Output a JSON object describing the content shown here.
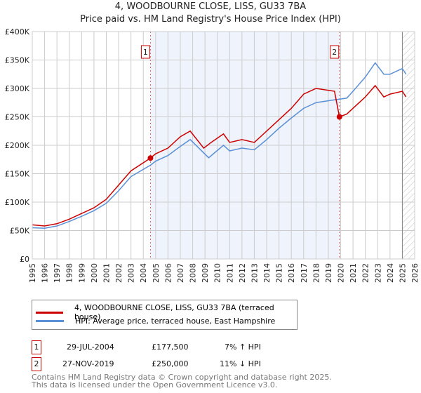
{
  "chart_data": {
    "type": "line",
    "title": "4, WOODBOURNE CLOSE, LISS, GU33 7BA",
    "subtitle": "Price paid vs. HM Land Registry's House Price Index (HPI)",
    "xlim": [
      1995,
      2026
    ],
    "ylim": [
      0,
      400000
    ],
    "y_ticks": [
      {
        "v": 0,
        "label": "£0"
      },
      {
        "v": 50000,
        "label": "£50K"
      },
      {
        "v": 100000,
        "label": "£100K"
      },
      {
        "v": 150000,
        "label": "£150K"
      },
      {
        "v": 200000,
        "label": "£200K"
      },
      {
        "v": 250000,
        "label": "£250K"
      },
      {
        "v": 300000,
        "label": "£300K"
      },
      {
        "v": 350000,
        "label": "£350K"
      },
      {
        "v": 400000,
        "label": "£400K"
      }
    ],
    "x_ticks": [
      "1995",
      "1996",
      "1997",
      "1998",
      "1999",
      "2000",
      "2001",
      "2002",
      "2003",
      "2004",
      "2005",
      "2006",
      "2007",
      "2008",
      "2009",
      "2010",
      "2011",
      "2012",
      "2013",
      "2014",
      "2015",
      "2016",
      "2017",
      "2018",
      "2019",
      "2020",
      "2021",
      "2022",
      "2023",
      "2024",
      "2025",
      "2026"
    ],
    "grid": true,
    "series": [
      {
        "name": "4, WOODBOURNE CLOSE, LISS, GU33 7BA (terraced house)",
        "color": "#cc0000",
        "x": [
          1995,
          1996,
          1997,
          1998,
          1999,
          2000,
          2001,
          2002,
          2003,
          2004.58,
          2005,
          2006,
          2007,
          2007.8,
          2008.9,
          2009.5,
          2010.5,
          2011,
          2012,
          2013,
          2014,
          2015,
          2016,
          2017,
          2018,
          2019.5,
          2019.9,
          2020.5,
          2021,
          2022,
          2022.8,
          2023.5,
          2024,
          2025,
          2025.3
        ],
        "y": [
          60000,
          58000,
          62000,
          70000,
          80000,
          90000,
          105000,
          130000,
          155000,
          177500,
          185000,
          195000,
          215000,
          225000,
          195000,
          205000,
          220000,
          205000,
          210000,
          205000,
          225000,
          245000,
          265000,
          290000,
          300000,
          295000,
          250000,
          255000,
          265000,
          285000,
          305000,
          285000,
          290000,
          295000,
          285000
        ]
      },
      {
        "name": "HPI: Average price, terraced house, East Hampshire",
        "color": "#5b8fd6",
        "x": [
          1995,
          1996,
          1997,
          1998,
          1999,
          2000,
          2001,
          2002,
          2003,
          2004.58,
          2005,
          2006,
          2007,
          2007.8,
          2009.3,
          2010.5,
          2011,
          2012,
          2013,
          2014,
          2015,
          2016,
          2017,
          2018,
          2019.5,
          2019.9,
          2020.5,
          2021,
          2022,
          2022.8,
          2023.5,
          2024,
          2024.5,
          2025,
          2025.3
        ],
        "y": [
          55000,
          54000,
          58000,
          66000,
          75000,
          85000,
          98000,
          120000,
          145000,
          165000,
          172000,
          182000,
          198000,
          210000,
          178000,
          200000,
          190000,
          195000,
          192000,
          210000,
          230000,
          248000,
          265000,
          275000,
          280000,
          281000,
          283000,
          295000,
          320000,
          345000,
          325000,
          325000,
          330000,
          335000,
          325000
        ]
      }
    ],
    "sales": [
      {
        "id": "1",
        "x": 2004.58,
        "y": 177500,
        "date": "29-JUL-2004",
        "price": "£177,500",
        "hpi": "7% ↑ HPI"
      },
      {
        "id": "2",
        "x": 2019.9,
        "y": 250000,
        "date": "27-NOV-2019",
        "price": "£250,000",
        "hpi": "11% ↓ HPI"
      }
    ],
    "hatch_from": 2025.0,
    "legend_position": "bottom"
  },
  "footer": {
    "line1": "Contains HM Land Registry data © Crown copyright and database right 2025.",
    "line2": "This data is licensed under the Open Government Licence v3.0."
  }
}
